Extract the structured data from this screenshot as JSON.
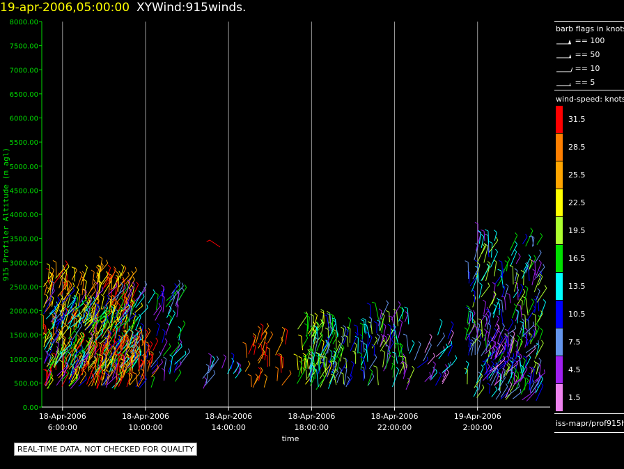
{
  "header": {
    "timestamp": "19-apr-2006,05:00:00",
    "title": "XYWind:915winds."
  },
  "chart_data": {
    "type": "wind-barb time-height",
    "ylabel": "915 Profiler Altitude (m agl)",
    "xlabel": "time",
    "ylim": [
      0,
      8000
    ],
    "yticks": [
      "0.00",
      "500.00",
      "1000.00",
      "1500.00",
      "2000.00",
      "2500.00",
      "3000.00",
      "3500.00",
      "4000.00",
      "4500.00",
      "5000.00",
      "5500.00",
      "6000.00",
      "6500.00",
      "7000.00",
      "7500.00",
      "8000.00"
    ],
    "xticks": [
      {
        "date": "18-Apr-2006",
        "time": "6:00:00"
      },
      {
        "date": "18-Apr-2006",
        "time": "10:00:00"
      },
      {
        "date": "18-Apr-2006",
        "time": "14:00:00"
      },
      {
        "date": "18-Apr-2006",
        "time": "18:00:00"
      },
      {
        "date": "18-Apr-2006",
        "time": "22:00:00"
      },
      {
        "date": "19-Apr-2006",
        "time": "2:00:00"
      }
    ],
    "xlim_hours": [
      5.0,
      29.5
    ],
    "grid_vertical": true
  },
  "legend": {
    "barb_title": "barb flags in knots",
    "barbs": [
      {
        "label": "== 100"
      },
      {
        "label": "== 50"
      },
      {
        "label": "== 10"
      },
      {
        "label": "== 5"
      }
    ],
    "speed_title": "wind-speed: knots",
    "colorbar": [
      {
        "label": "31.5",
        "color": "#ff0000"
      },
      {
        "label": "28.5",
        "color": "#ff7f00"
      },
      {
        "label": "25.5",
        "color": "#ffa500"
      },
      {
        "label": "22.5",
        "color": "#ffff00"
      },
      {
        "label": "19.5",
        "color": "#adff2f"
      },
      {
        "label": "16.5",
        "color": "#00e000"
      },
      {
        "label": "13.5",
        "color": "#00ffff"
      },
      {
        "label": "10.5",
        "color": "#0000ff"
      },
      {
        "label": "7.5",
        "color": "#6495ed"
      },
      {
        "label": "4.5",
        "color": "#a020f0"
      },
      {
        "label": "1.5",
        "color": "#ee82ee"
      }
    ],
    "source": "iss-mapr/prof915h"
  },
  "footer": {
    "qc_note": "REAL-TIME DATA, NOT CHECKED FOR QUALITY"
  }
}
